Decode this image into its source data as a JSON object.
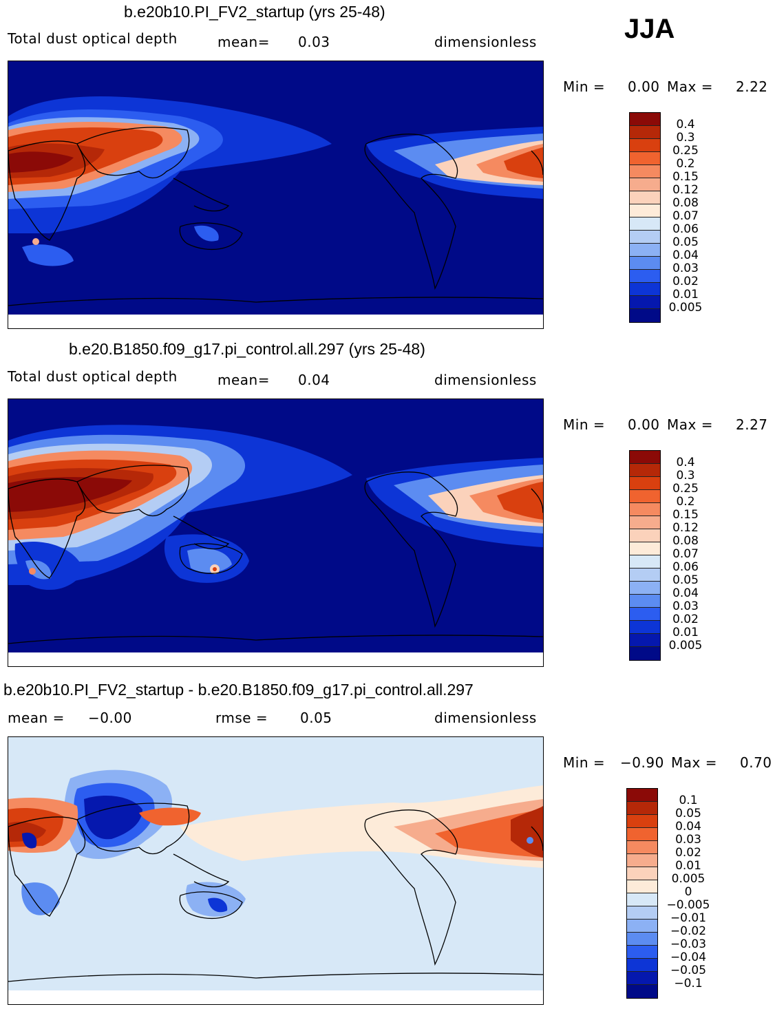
{
  "season": "JJA",
  "panels": [
    {
      "title": "b.e20b10.PI_FV2_startup (yrs 25-48)",
      "left_label": "Total dust optical depth",
      "mean_label": "mean=",
      "mean_value": "0.03",
      "units": "dimensionless",
      "min_label": "Min =",
      "min_value": "0.00",
      "max_label": "Max =",
      "max_value": "2.22",
      "colorbar": {
        "labels": [
          "0.4",
          "0.3",
          "0.25",
          "0.2",
          "0.15",
          "0.12",
          "0.08",
          "0.07",
          "0.06",
          "0.05",
          "0.04",
          "0.03",
          "0.02",
          "0.01",
          "0.005"
        ],
        "colors": [
          "#8b0a07",
          "#b52808",
          "#d9400f",
          "#f0632f",
          "#f58a60",
          "#f6ac8d",
          "#fbd2bb",
          "#fdebd9",
          "#d7e8f7",
          "#b4cdf4",
          "#8cb1f4",
          "#5c8cf1",
          "#2c5df0",
          "#0d35d6",
          "#0518ae",
          "#000a88"
        ]
      }
    },
    {
      "title": "b.e20.B1850.f09_g17.pi_control.all.297 (yrs 25-48)",
      "left_label": "Total dust optical depth",
      "mean_label": "mean=",
      "mean_value": "0.04",
      "units": "dimensionless",
      "min_label": "Min =",
      "min_value": "0.00",
      "max_label": "Max =",
      "max_value": "2.27",
      "colorbar": {
        "labels": [
          "0.4",
          "0.3",
          "0.25",
          "0.2",
          "0.15",
          "0.12",
          "0.08",
          "0.07",
          "0.06",
          "0.05",
          "0.04",
          "0.03",
          "0.02",
          "0.01",
          "0.005"
        ],
        "colors": [
          "#8b0a07",
          "#b52808",
          "#d9400f",
          "#f0632f",
          "#f58a60",
          "#f6ac8d",
          "#fbd2bb",
          "#fdebd9",
          "#d7e8f7",
          "#b4cdf4",
          "#8cb1f4",
          "#5c8cf1",
          "#2c5df0",
          "#0d35d6",
          "#0518ae",
          "#000a88"
        ]
      }
    },
    {
      "title": "b.e20b10.PI_FV2_startup - b.e20.B1850.f09_g17.pi_control.all.297",
      "mean_label": "mean =",
      "mean_value": "−0.00",
      "rmse_label": "rmse =",
      "rmse_value": "0.05",
      "units": "dimensionless",
      "min_label": "Min =",
      "min_value": "−0.90",
      "max_label": "Max =",
      "max_value": "0.70",
      "colorbar": {
        "labels": [
          "0.1",
          "0.05",
          "0.04",
          "0.03",
          "0.02",
          "0.01",
          "0.005",
          "0",
          "−0.005",
          "−0.01",
          "−0.02",
          "−0.03",
          "−0.04",
          "−0.05",
          "−0.1"
        ],
        "colors": [
          "#8b0a07",
          "#b52808",
          "#d9400f",
          "#f0632f",
          "#f58a60",
          "#f6ac8d",
          "#fbd2bb",
          "#fdebd9",
          "#d7e8f7",
          "#b4cdf4",
          "#8cb1f4",
          "#5c8cf1",
          "#2c5df0",
          "#0d35d6",
          "#0518ae",
          "#000a88"
        ]
      }
    }
  ]
}
